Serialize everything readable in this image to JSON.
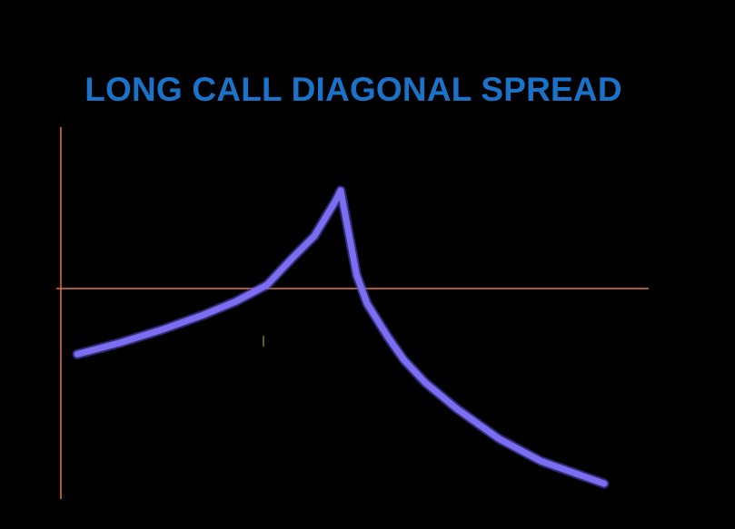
{
  "chart_data": {
    "type": "line",
    "title": "LONG CALL DIAGONAL SPREAD",
    "xlabel": "",
    "ylabel": "",
    "grid": false,
    "legend": "none",
    "xlim": [
      0,
      100
    ],
    "ylim": [
      -100,
      50
    ],
    "series": [
      {
        "x": [
          0,
          8,
          16,
          24,
          30,
          36,
          41,
          45,
          47,
          49,
          50,
          51,
          52,
          53,
          55,
          57,
          59,
          62,
          66,
          72,
          80,
          88,
          94,
          100
        ],
        "y": [
          -35,
          -29,
          -22,
          -14,
          -7,
          1,
          9,
          15,
          20,
          25,
          28,
          20,
          12,
          4,
          -8,
          -17,
          -26,
          -38,
          -50,
          -64,
          -80,
          -92,
          -98,
          -104
        ]
      }
    ],
    "colors": {
      "background": "#000000",
      "title": "#1a73c9",
      "axes": "#e8743a",
      "line": "#7b6ef0",
      "line_glow": "#5a4fd8"
    }
  }
}
